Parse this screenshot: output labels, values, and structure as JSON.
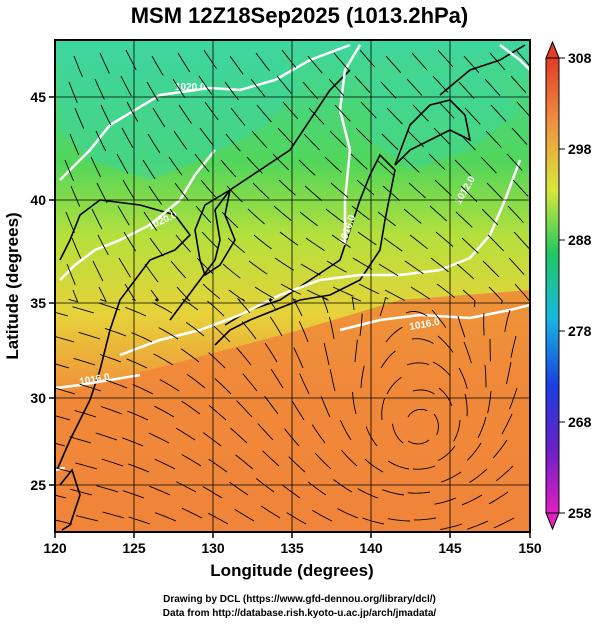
{
  "title": "MSM 12Z18Sep2025 (1013.2hPa)",
  "x_axis": {
    "label": "Longitude (degrees)",
    "ticks": [
      "120",
      "125",
      "130",
      "135",
      "140",
      "145",
      "150"
    ]
  },
  "y_axis": {
    "label": "Latitude  (degrees)",
    "ticks": [
      "25",
      "30",
      "35",
      "40",
      "45"
    ]
  },
  "colorbar": {
    "ticks": [
      "258",
      "268",
      "278",
      "288",
      "298",
      "308"
    ]
  },
  "contour_labels": [
    "1020.0",
    "1012.0",
    "1016.0",
    "1020.0",
    "1016.0",
    "1016.0"
  ],
  "credits": {
    "line1": "Drawing by DCL (https://www.gfd-dennou.org/library/dcl/)",
    "line2": "Data from http://database.rish.kyoto-u.ac.jp/arch/jmadata/"
  },
  "colors": {
    "warm": "#f07d3c",
    "mid": "#d8e83a",
    "cool": "#3ed6a0",
    "contour": "#ffffff",
    "coast": "#000000"
  }
}
